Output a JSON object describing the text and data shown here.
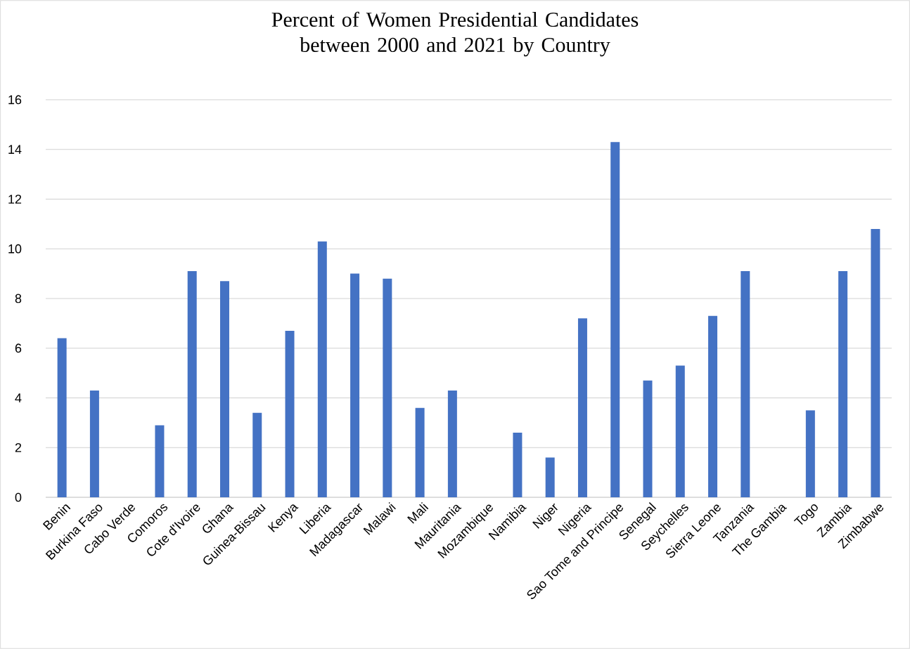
{
  "chart_data": {
    "type": "bar",
    "title": "Percent of Women Presidential Candidates between 2000 and 2021 by Country",
    "categories": [
      "Benin",
      "Burkina Faso",
      "Cabo Verde",
      "Comoros",
      "Cote d'Ivoire",
      "Ghana",
      "Guinea-Bissau",
      "Kenya",
      "Liberia",
      "Madagascar",
      "Malawi",
      "Mali",
      "Mauritania",
      "Mozambique",
      "Namibia",
      "Niger",
      "Nigeria",
      "Sao Tome and Principe",
      "Senegal",
      "Seychelles",
      "Sierra Leone",
      "Tanzania",
      "The Gambia",
      "Togo",
      "Zambia",
      "Zimbabwe"
    ],
    "values": [
      6.4,
      4.3,
      0,
      2.9,
      9.1,
      8.7,
      3.4,
      6.7,
      10.3,
      9.0,
      8.8,
      3.6,
      4.3,
      0,
      2.6,
      1.6,
      7.2,
      14.3,
      4.7,
      5.3,
      7.3,
      9.1,
      0,
      3.5,
      9.1,
      10.8
    ],
    "color": "#4472c4",
    "ylim": [
      0,
      16
    ],
    "yticks": [
      0,
      2,
      4,
      6,
      8,
      10,
      12,
      14,
      16
    ],
    "grid": "y"
  }
}
